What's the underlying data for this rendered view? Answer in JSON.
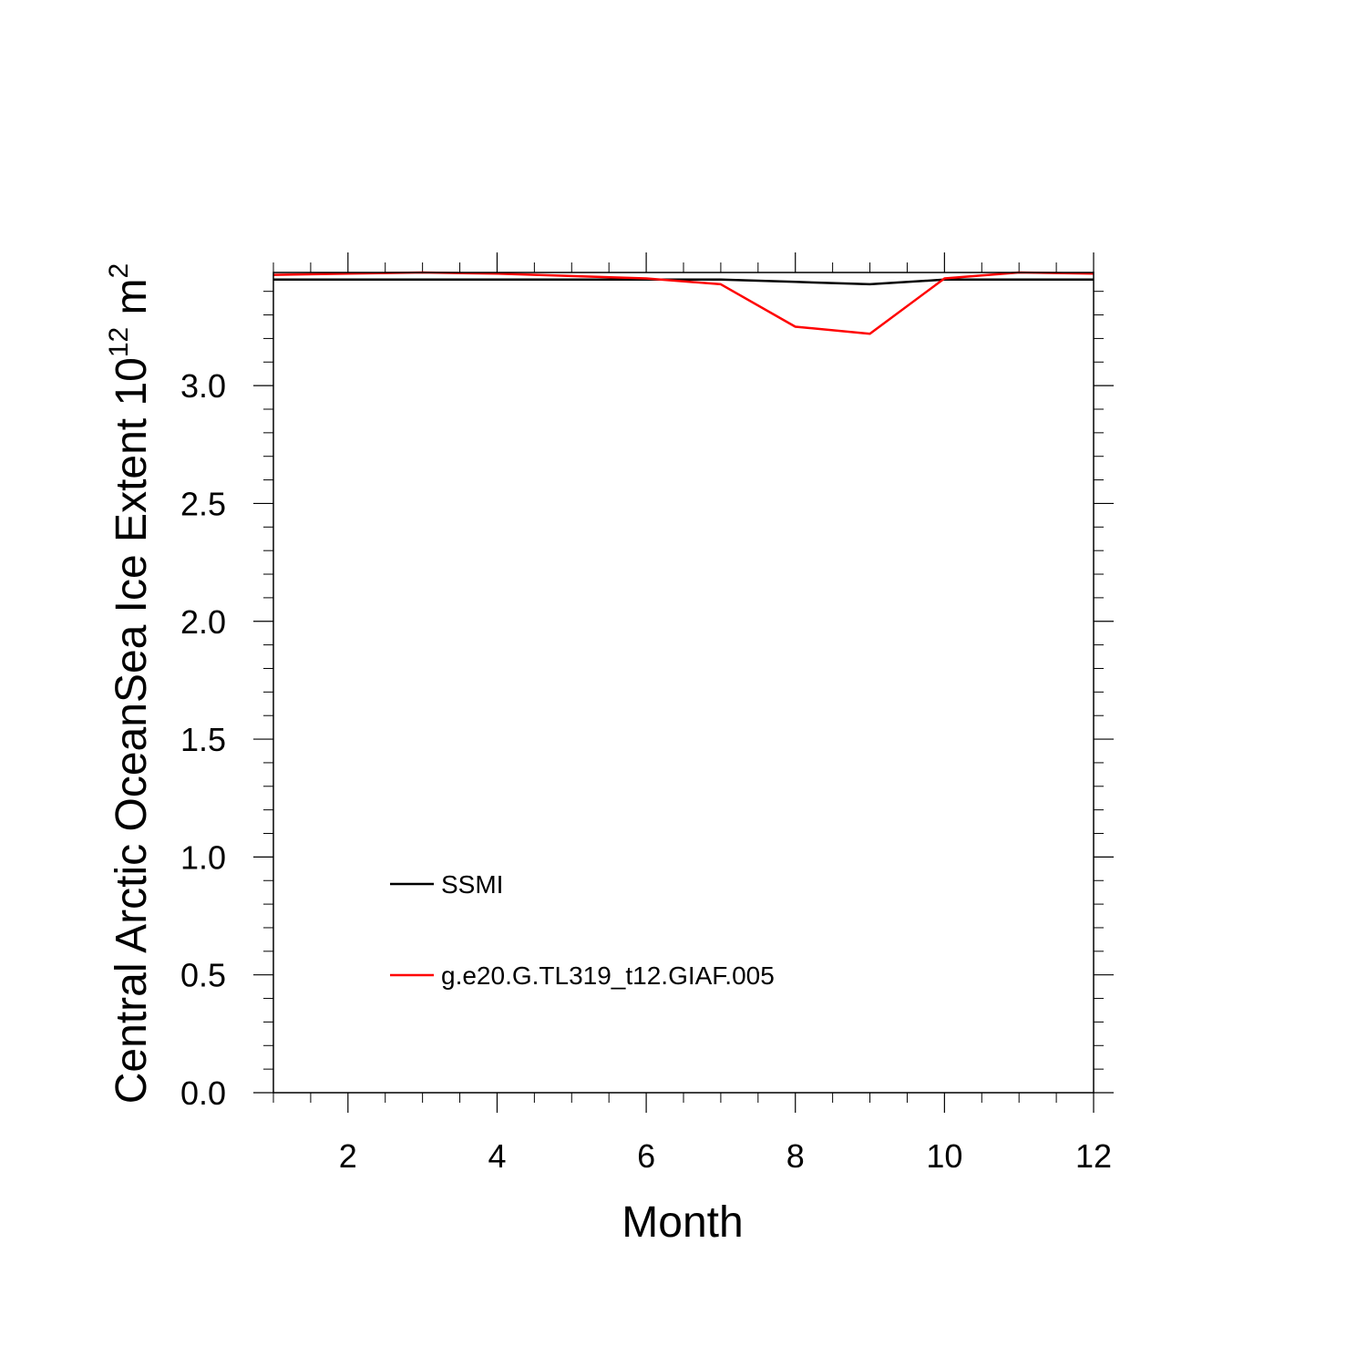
{
  "chart_data": {
    "type": "line",
    "xlabel": "Month",
    "ylabel": {
      "text": "Central Arctic OceanSea Ice Extent 10",
      "sup1": "12",
      "mid": " m",
      "sup2": "2"
    },
    "xlim": [
      1,
      12
    ],
    "ylim": [
      0,
      3.48
    ],
    "x_major_ticks": [
      2,
      4,
      6,
      8,
      10,
      12
    ],
    "y_major_ticks": [
      0.0,
      0.5,
      1.0,
      1.5,
      2.0,
      2.5,
      3.0
    ],
    "x_tick_labels": [
      "2",
      "4",
      "6",
      "8",
      "10",
      "12"
    ],
    "y_tick_labels": [
      "0.0",
      "0.5",
      "1.0",
      "1.5",
      "2.0",
      "2.5",
      "3.0"
    ],
    "x": [
      1,
      2,
      3,
      4,
      5,
      6,
      7,
      8,
      9,
      10,
      11,
      12
    ],
    "series": [
      {
        "name": "SSMI",
        "color": "#000000",
        "values": [
          3.45,
          3.45,
          3.45,
          3.45,
          3.45,
          3.45,
          3.45,
          3.44,
          3.43,
          3.45,
          3.45,
          3.45
        ]
      },
      {
        "name": "g.e20.G.TL319_t12.GIAF.005",
        "color": "#ff0000",
        "values": [
          3.47,
          3.475,
          3.48,
          3.475,
          3.465,
          3.455,
          3.43,
          3.25,
          3.22,
          3.455,
          3.48,
          3.475
        ]
      }
    ],
    "legend_position": "lower-left",
    "grid": false
  }
}
